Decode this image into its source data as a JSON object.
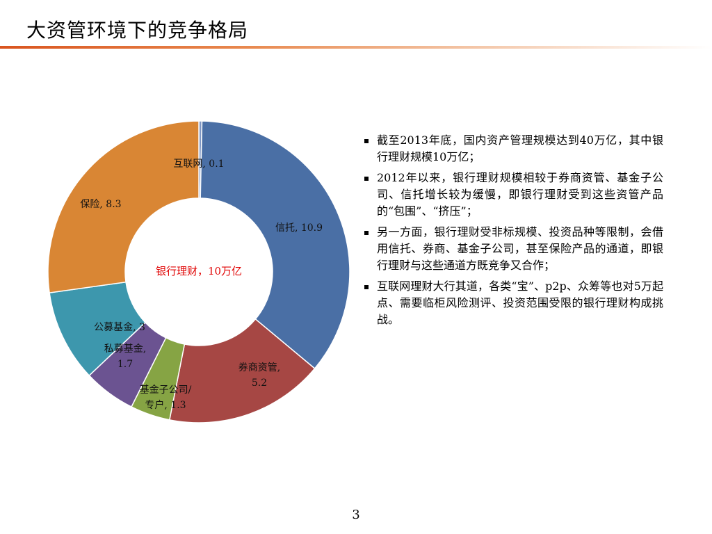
{
  "slide": {
    "title": "大资管环境下的竞争格局",
    "page_number": "3"
  },
  "chart_data": {
    "type": "pie",
    "donut": true,
    "center_label": "银行理财，10万亿",
    "center_label_color": "#e00000",
    "slices": [
      {
        "name": "互联网",
        "value": 0.1,
        "color": "#7f97c4",
        "label_lines": [
          "互联网, 0.1"
        ]
      },
      {
        "name": "信托",
        "value": 10.9,
        "color": "#4a6fa5",
        "label_lines": [
          "信托, 10.9"
        ]
      },
      {
        "name": "券商资管",
        "value": 5.2,
        "color": "#a64744",
        "label_lines": [
          "券商资管,",
          "5.2"
        ]
      },
      {
        "name": "基金子公司/专户",
        "value": 1.3,
        "color": "#86a444",
        "label_lines": [
          "基金子公司/",
          "专户, 1.3"
        ]
      },
      {
        "name": "私募基金",
        "value": 1.7,
        "color": "#6b5391",
        "label_lines": [
          "私募基金,",
          "1.7"
        ]
      },
      {
        "name": "公募基金",
        "value": 3,
        "color": "#3d97ad",
        "label_lines": [
          "公募基金, 3"
        ]
      },
      {
        "name": "保险",
        "value": 8.3,
        "color": "#d98634",
        "label_lines": [
          "保险, 8.3"
        ]
      }
    ]
  },
  "bullets": [
    "截至2013年底，国内资产管理规模达到40万亿，其中银行理财规模10万亿；",
    "2012年以来，银行理财规模相较于券商资管、基金子公司、信托增长较为缓慢，即银行理财受到这些资管产品的“包围”、“挤压”；",
    "另一方面，银行理财受非标规模、投资品种等限制，会借用信托、券商、基金子公司，甚至保险产品的通道，即银行理财与这些通道方既竞争又合作；",
    "互联网理财大行其道，各类“宝”、p2p、众筹等也对5万起点、需要临柜风险测评、投资范围受限的银行理财构成挑战。"
  ]
}
